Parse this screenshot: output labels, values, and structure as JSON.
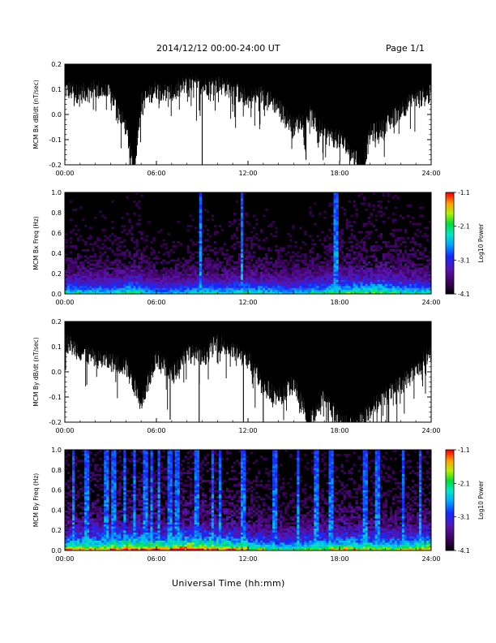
{
  "header": {
    "title": "2014/12/12  00:00-24:00 UT",
    "page": "Page 1/1"
  },
  "footer": {
    "xlabel": "Universal Time (hh:mm)"
  },
  "chart_data": [
    {
      "type": "line",
      "ylabel": "MCM Bx dB/dt (nT/sec)",
      "ylim": [
        -0.2,
        0.2
      ],
      "yticks": [
        "0.2",
        "0.1",
        "0.0",
        "-0.1",
        "-0.2"
      ],
      "xlim": [
        0,
        24
      ],
      "xticks": [
        "00:00",
        "06:00",
        "12:00",
        "18:00",
        "24:00"
      ],
      "x": [
        0,
        1,
        2,
        3,
        4,
        4.5,
        5,
        6,
        7,
        8,
        9,
        10,
        11,
        12,
        13,
        14,
        15,
        16,
        17,
        18,
        19,
        19.5,
        20,
        21,
        22,
        23,
        24
      ],
      "series": [
        {
          "upper": [
            0.21,
            0.21,
            0.21,
            0.21,
            0.21,
            0.21,
            0.21,
            0.21,
            0.21,
            0.21,
            0.21,
            0.21,
            0.21,
            0.21,
            0.21,
            0.21,
            0.21,
            0.21,
            0.21,
            0.21,
            0.21,
            0.21,
            0.21,
            0.21,
            0.21,
            0.21,
            0.21
          ],
          "lower": [
            0.1,
            0.08,
            0.1,
            0.08,
            -0.05,
            -0.22,
            0.05,
            0.1,
            0.08,
            0.12,
            0.11,
            0.12,
            0.1,
            0.06,
            0.08,
            0.03,
            -0.05,
            0.0,
            -0.08,
            -0.1,
            -0.17,
            -0.22,
            -0.08,
            -0.05,
            0.02,
            0.06,
            0.08
          ]
        }
      ],
      "spikes": [
        {
          "x": 9.0,
          "y": -0.2
        },
        {
          "x": 15.8,
          "y": -0.18
        },
        {
          "x": 17.6,
          "y": -0.13
        }
      ]
    },
    {
      "type": "heatmap",
      "ylabel": "MCM Bx Freq (Hz)",
      "ylim": [
        0,
        1.0
      ],
      "yticks": [
        "1.0",
        "0.8",
        "0.6",
        "0.4",
        "0.2",
        "0.0"
      ],
      "xlim": [
        0,
        24
      ],
      "xticks": [
        "00:00",
        "06:00",
        "12:00",
        "18:00",
        "24:00"
      ],
      "colorbar": {
        "label": "Log10 Power",
        "range": [
          -4.1,
          -1.1
        ],
        "ticks": [
          "-1.1",
          "-2.1",
          "-3.1",
          "-4.1"
        ]
      },
      "activity": [
        0.9,
        0.85,
        0.85,
        0.9,
        1.0,
        0.8,
        0.75,
        0.8,
        0.85,
        0.9,
        0.85,
        0.95,
        0.9,
        0.85,
        0.8,
        0.85,
        0.9,
        1.0,
        1.05,
        1.05,
        1.1,
        1.0,
        0.95,
        0.9
      ],
      "vertical_bands": [
        8.8,
        11.5,
        17.7
      ]
    },
    {
      "type": "line",
      "ylabel": "MCM By dB/dt (nT/sec)",
      "ylim": [
        -0.2,
        0.2
      ],
      "yticks": [
        "0.2",
        "0.1",
        "0.0",
        "-0.1",
        "-0.2"
      ],
      "xlim": [
        0,
        24
      ],
      "xticks": [
        "00:00",
        "06:00",
        "12:00",
        "18:00",
        "24:00"
      ],
      "x": [
        0,
        1,
        2,
        3,
        4,
        5,
        6,
        7,
        8,
        9,
        10,
        11,
        12,
        13,
        14,
        15,
        16,
        17,
        18,
        19,
        20,
        21,
        22,
        23,
        24
      ],
      "series": [
        {
          "upper": [
            0.21,
            0.21,
            0.21,
            0.21,
            0.21,
            0.21,
            0.21,
            0.21,
            0.21,
            0.21,
            0.21,
            0.21,
            0.21,
            0.21,
            0.21,
            0.21,
            0.21,
            0.21,
            0.21,
            0.21,
            0.21,
            0.21,
            0.21,
            0.21,
            0.21
          ],
          "lower": [
            0.12,
            0.08,
            0.05,
            0.04,
            0.02,
            -0.12,
            0.06,
            -0.02,
            0.08,
            0.05,
            0.12,
            0.08,
            0.05,
            -0.06,
            -0.1,
            -0.05,
            -0.2,
            -0.1,
            -0.2,
            -0.22,
            -0.15,
            -0.1,
            -0.05,
            0.0,
            0.08
          ]
        }
      ],
      "spikes": [
        {
          "x": 6.9,
          "y": -0.19
        },
        {
          "x": 8.8,
          "y": -0.2
        },
        {
          "x": 11.7,
          "y": -0.2
        },
        {
          "x": 13.0,
          "y": -0.2
        }
      ]
    },
    {
      "type": "heatmap",
      "ylabel": "MCM By Freq (Hz)",
      "ylim": [
        0,
        1.0
      ],
      "yticks": [
        "1.0",
        "0.8",
        "0.6",
        "0.4",
        "0.2",
        "0.0"
      ],
      "xlim": [
        0,
        24
      ],
      "xticks": [
        "00:00",
        "06:00",
        "12:00",
        "18:00",
        "24:00"
      ],
      "colorbar": {
        "label": "Log10 Power",
        "range": [
          -4.1,
          -1.1
        ],
        "ticks": [
          "-1.1",
          "-2.1",
          "-3.1",
          "-4.1"
        ]
      },
      "activity": [
        1.3,
        1.35,
        1.3,
        1.4,
        1.45,
        1.4,
        1.35,
        1.45,
        1.5,
        1.4,
        1.35,
        1.3,
        1.1,
        1.0,
        1.0,
        1.05,
        1.1,
        1.2,
        1.25,
        1.2,
        1.15,
        1.1,
        1.2,
        1.3
      ],
      "vertical_bands": [
        0.5,
        1.4,
        2.6,
        3.1,
        3.8,
        4.5,
        5.2,
        5.6,
        6.1,
        6.8,
        7.3,
        8.6,
        9.6,
        10.1,
        11.6,
        13.7,
        15.2,
        16.4,
        17.4,
        19.6,
        20.4,
        22.1,
        23.2
      ]
    }
  ]
}
